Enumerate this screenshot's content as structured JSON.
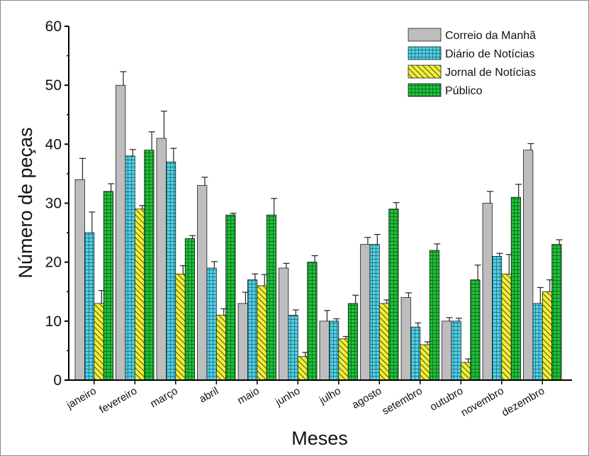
{
  "chart_data": {
    "type": "bar",
    "xlabel": "Meses",
    "ylabel": "Número de peças",
    "ylim": [
      0,
      60
    ],
    "yticks": [
      0,
      10,
      20,
      30,
      40,
      50,
      60
    ],
    "grid": false,
    "legend_position": "top-right",
    "categories": [
      "janeiro",
      "fevereiro",
      "março",
      "abril",
      "maio",
      "junho",
      "julho",
      "agosto",
      "setembro",
      "outubro",
      "novembro",
      "dezembro"
    ],
    "series": [
      {
        "name": "Correio da Manhã",
        "color": "#bdbdbd",
        "pattern": "none",
        "values": [
          34,
          50,
          41,
          33,
          13,
          19,
          10,
          23,
          14,
          10,
          30,
          39
        ],
        "errors": [
          3.6,
          2.3,
          4.6,
          1.4,
          1.9,
          0.8,
          1.8,
          1.2,
          0.8,
          0.6,
          2.0,
          1.1
        ]
      },
      {
        "name": "Diário de Notícias",
        "color": "#4fd0e6",
        "pattern": "grid",
        "values": [
          25,
          38,
          37,
          19,
          17,
          11,
          10,
          23,
          9,
          10,
          21,
          13
        ],
        "errors": [
          3.5,
          1.1,
          2.3,
          1.1,
          1.0,
          0.9,
          0.4,
          1.7,
          0.7,
          0.5,
          0.5,
          2.7
        ]
      },
      {
        "name": "Jornal de Notícias",
        "color": "#f0ee3a",
        "pattern": "diagonal",
        "values": [
          13,
          29,
          18,
          11,
          16,
          4,
          7,
          13,
          6,
          3,
          18,
          15
        ],
        "errors": [
          2.2,
          0.6,
          1.4,
          1.1,
          1.9,
          0.7,
          0.4,
          0.6,
          0.5,
          0.6,
          3.3,
          2.0
        ]
      },
      {
        "name": "Público",
        "color": "#1ec13a",
        "pattern": "grid",
        "values": [
          32,
          39,
          24,
          28,
          28,
          20,
          13,
          29,
          22,
          17,
          31,
          23
        ],
        "errors": [
          1.3,
          3.1,
          0.5,
          0.3,
          2.8,
          1.1,
          1.4,
          1.1,
          1.1,
          2.5,
          2.2,
          0.8
        ]
      }
    ]
  }
}
